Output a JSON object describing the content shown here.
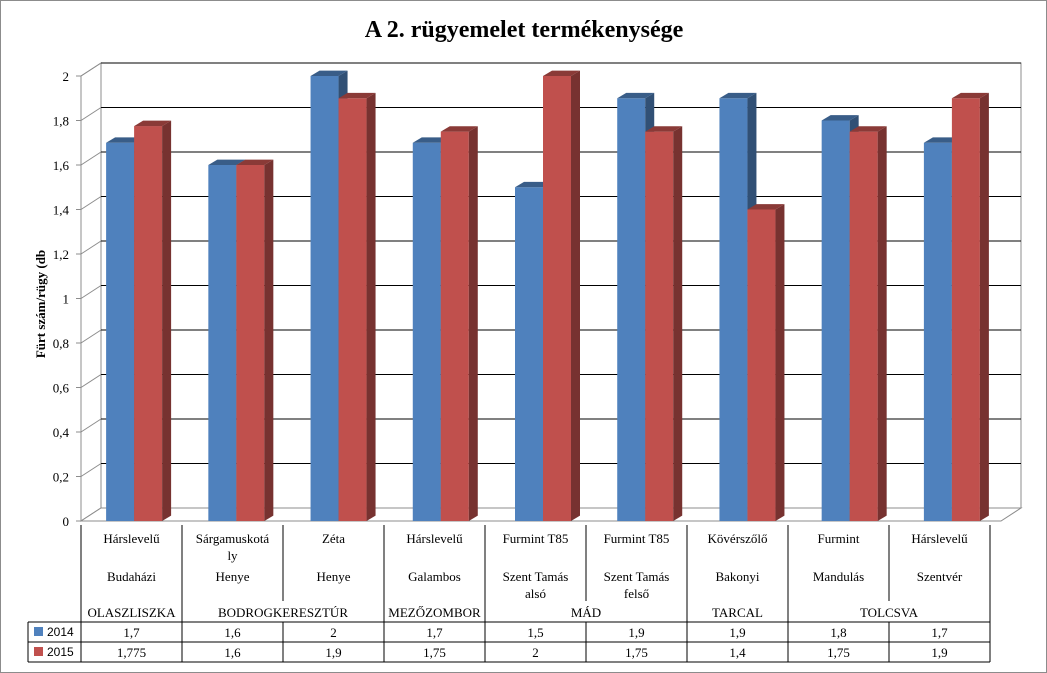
{
  "chart_data": {
    "type": "bar",
    "title": "A 2. rügyemelet termékenysége",
    "ylabel": "Fürt szám/rügy (db",
    "ylim": [
      0,
      2
    ],
    "yticks": [
      "0",
      "0,2",
      "0,4",
      "0,6",
      "0,8",
      "1",
      "1,2",
      "1,4",
      "1,6",
      "1,8",
      "2"
    ],
    "grid": true,
    "categories": [
      {
        "variety": "Hárslevelű",
        "site": "Budaházi"
      },
      {
        "variety": "Sárgamuskotá ly",
        "site": "Henye"
      },
      {
        "variety": "Zéta",
        "site": "Henye"
      },
      {
        "variety": "Hárslevelű",
        "site": "Galambos"
      },
      {
        "variety": "Furmint T85",
        "site": "Szent Tamás alsó"
      },
      {
        "variety": "Furmint T85",
        "site": "Szent Tamás felső"
      },
      {
        "variety": "Kövérszőlő",
        "site": "Bakonyi"
      },
      {
        "variety": "Furmint",
        "site": "Mandulás"
      },
      {
        "variety": "Hárslevelű",
        "site": "Szentvér"
      }
    ],
    "groups": [
      {
        "label": "OLASZLISZKA",
        "span": [
          0,
          0
        ]
      },
      {
        "label": "BODROGKERESZTÚR",
        "span": [
          1,
          2
        ]
      },
      {
        "label": "MEZŐZOMBOR",
        "span": [
          3,
          3
        ]
      },
      {
        "label": "MÁD",
        "span": [
          4,
          5
        ]
      },
      {
        "label": "TARCAL",
        "span": [
          6,
          6
        ]
      },
      {
        "label": "TOLCSVA",
        "span": [
          7,
          8
        ]
      }
    ],
    "series": [
      {
        "name": "2014",
        "color": "#4f81bd",
        "values": [
          1.7,
          1.6,
          2,
          1.7,
          1.5,
          1.9,
          1.9,
          1.8,
          1.7
        ],
        "labels": [
          "1,7",
          "1,6",
          "2",
          "1,7",
          "1,5",
          "1,9",
          "1,9",
          "1,8",
          "1,7"
        ]
      },
      {
        "name": "2015",
        "color": "#c0504d",
        "values": [
          1.775,
          1.6,
          1.9,
          1.75,
          2,
          1.75,
          1.4,
          1.75,
          1.9
        ],
        "labels": [
          "1,775",
          "1,6",
          "1,9",
          "1,75",
          "2",
          "1,75",
          "1,4",
          "1,75",
          "1,9"
        ]
      }
    ]
  }
}
